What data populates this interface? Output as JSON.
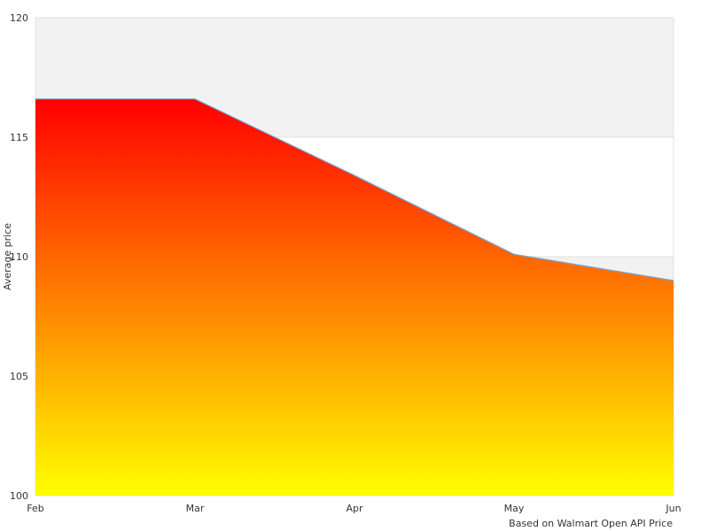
{
  "chart_data": {
    "type": "area",
    "categories": [
      "Feb",
      "Mar",
      "Apr",
      "May",
      "Jun"
    ],
    "values": [
      116.6,
      116.6,
      113.4,
      110.1,
      109.0
    ],
    "ylabel": "Average price",
    "ylim": [
      100,
      120
    ],
    "yticks": [
      "100",
      "105",
      "110",
      "115",
      "120"
    ],
    "grid": true,
    "alternate_bands": true,
    "credit": "Based on Walmart Open API Price",
    "colors": {
      "fill_top": "#ff0000",
      "fill_bottom": "#ffff00",
      "line": "#7aa6d6",
      "band": "#f2f2f2",
      "grid": "#e0e0e0"
    }
  }
}
